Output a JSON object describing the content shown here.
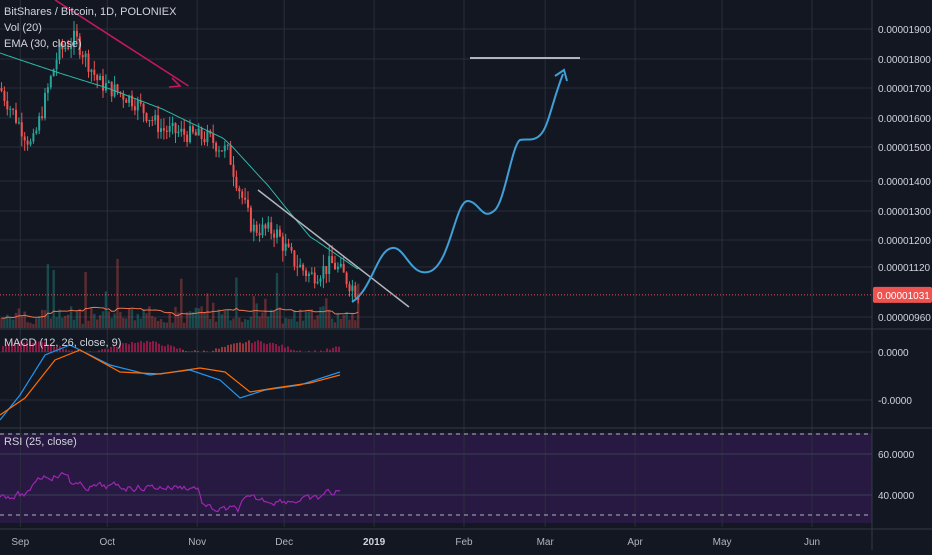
{
  "header": {
    "title": "BitShares / Bitcoin, 1D, POLONIEX",
    "vol_label": "Vol (20)",
    "ema_label": "EMA (30, close)"
  },
  "macd_label": "MACD (12, 26, close, 9)",
  "rsi_label": "RSI (25, close)",
  "last_price_label": "0.00001031",
  "colors": {
    "background": "#131722",
    "grid": "#2a2e39",
    "up": "#26a69a",
    "down": "#ef5350",
    "ema": "#2eb8a8",
    "volume_ma": "#f0734d",
    "macd": "#2196f3",
    "signal": "#ff6d00",
    "rsi": "#9c27b0",
    "rsi_band": "#2a1a45",
    "drawing_arrow": "#c2185b",
    "drawing_line": "#b2b5be",
    "projection": "#3f9fd6",
    "last_price": "#ef5350"
  },
  "chart_data": [
    {
      "type": "candlestick",
      "symbol": "BitShares / Bitcoin",
      "interval": "1D",
      "exchange": "POLONIEX",
      "x_ticks": [
        "Sep",
        "Oct",
        "Nov",
        "Dec",
        "2019",
        "Feb",
        "Mar",
        "Apr",
        "May",
        "Jun"
      ],
      "y_ticks": [
        "0.00001900",
        "0.00001800",
        "0.00001700",
        "0.00001600",
        "0.00001500",
        "0.00001400",
        "0.00001300",
        "0.00001200",
        "0.00001120",
        "0.00000960"
      ],
      "series": [
        {
          "name": "Price",
          "keypoints": [
            {
              "t": "2018-08-25",
              "v": 1.7e-05
            },
            {
              "t": "2018-09-05",
              "v": 1.5e-05
            },
            {
              "t": "2018-09-14",
              "v": 1.82e-05
            },
            {
              "t": "2018-09-20",
              "v": 1.87e-05
            },
            {
              "t": "2018-09-28",
              "v": 1.72e-05
            },
            {
              "t": "2018-10-10",
              "v": 1.66e-05
            },
            {
              "t": "2018-10-20",
              "v": 1.56e-05
            },
            {
              "t": "2018-11-05",
              "v": 1.53e-05
            },
            {
              "t": "2018-11-12",
              "v": 1.48e-05
            },
            {
              "t": "2018-11-20",
              "v": 1.24e-05
            },
            {
              "t": "2018-11-28",
              "v": 1.23e-05
            },
            {
              "t": "2018-12-03",
              "v": 1.15e-05
            },
            {
              "t": "2018-12-10",
              "v": 1.09e-05
            },
            {
              "t": "2018-12-18",
              "v": 1.13e-05
            },
            {
              "t": "2018-12-27",
              "v": 1.031e-05
            }
          ]
        },
        {
          "name": "EMA",
          "keypoints": [
            {
              "t": "2018-08-25",
              "v": 1.82e-05
            },
            {
              "t": "2018-09-15",
              "v": 1.75e-05
            },
            {
              "t": "2018-10-01",
              "v": 1.7e-05
            },
            {
              "t": "2018-10-20",
              "v": 1.63e-05
            },
            {
              "t": "2018-11-10",
              "v": 1.53e-05
            },
            {
              "t": "2018-11-25",
              "v": 1.39e-05
            },
            {
              "t": "2018-12-10",
              "v": 1.21e-05
            },
            {
              "t": "2018-12-27",
              "v": 1.11e-05
            }
          ]
        }
      ],
      "last_price": 1.031e-05
    },
    {
      "type": "line",
      "name": "MACD (12, 26, close, 9)",
      "y_ticks": [
        "0.0000",
        "-0.0000"
      ]
    },
    {
      "type": "line",
      "name": "RSI (25, close)",
      "y_ticks": [
        "60.0000",
        "40.0000"
      ]
    }
  ]
}
